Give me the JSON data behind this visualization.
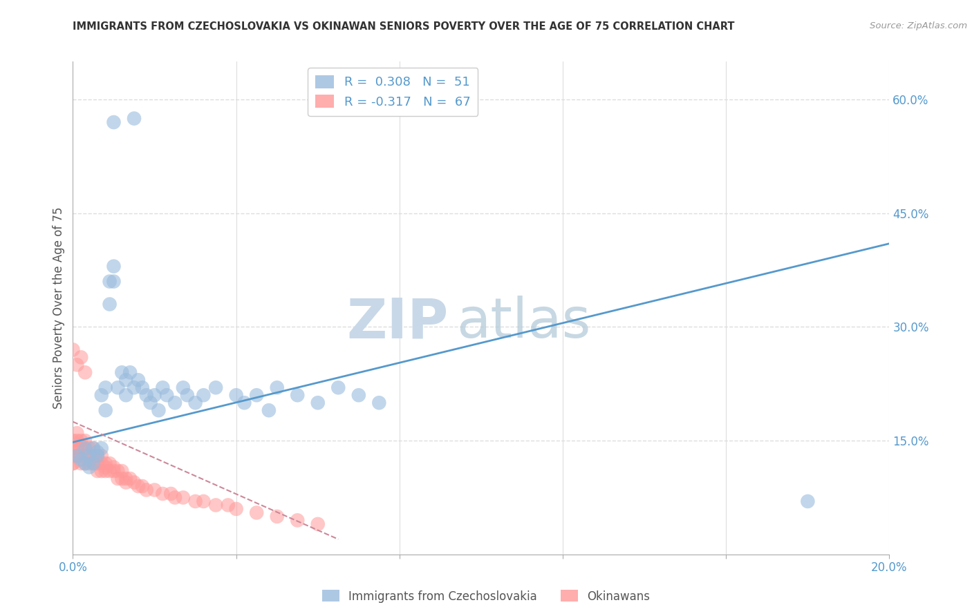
{
  "title": "IMMIGRANTS FROM CZECHOSLOVAKIA VS OKINAWAN SENIORS POVERTY OVER THE AGE OF 75 CORRELATION CHART",
  "source": "Source: ZipAtlas.com",
  "ylabel": "Seniors Poverty Over the Age of 75",
  "xlim": [
    0.0,
    0.2
  ],
  "ylim": [
    0.0,
    0.65
  ],
  "blue_color": "#99BBDD",
  "pink_color": "#FF9999",
  "line_blue_color": "#5599CC",
  "line_pink_color": "#CC8899",
  "blue_scatter_x": [
    0.001,
    0.002,
    0.003,
    0.003,
    0.004,
    0.004,
    0.005,
    0.005,
    0.006,
    0.006,
    0.007,
    0.007,
    0.008,
    0.008,
    0.009,
    0.009,
    0.01,
    0.01,
    0.011,
    0.012,
    0.013,
    0.013,
    0.014,
    0.015,
    0.016,
    0.017,
    0.018,
    0.019,
    0.02,
    0.021,
    0.022,
    0.023,
    0.025,
    0.027,
    0.028,
    0.03,
    0.032,
    0.035,
    0.04,
    0.042,
    0.045,
    0.048,
    0.05,
    0.055,
    0.06,
    0.065,
    0.07,
    0.075,
    0.01,
    0.015,
    0.18
  ],
  "blue_scatter_y": [
    0.13,
    0.125,
    0.14,
    0.12,
    0.13,
    0.115,
    0.14,
    0.12,
    0.135,
    0.13,
    0.14,
    0.21,
    0.22,
    0.19,
    0.36,
    0.33,
    0.38,
    0.36,
    0.22,
    0.24,
    0.21,
    0.23,
    0.24,
    0.22,
    0.23,
    0.22,
    0.21,
    0.2,
    0.21,
    0.19,
    0.22,
    0.21,
    0.2,
    0.22,
    0.21,
    0.2,
    0.21,
    0.22,
    0.21,
    0.2,
    0.21,
    0.19,
    0.22,
    0.21,
    0.2,
    0.22,
    0.21,
    0.2,
    0.57,
    0.575,
    0.07
  ],
  "pink_scatter_x": [
    0.0,
    0.0,
    0.0,
    0.0,
    0.0,
    0.0,
    0.001,
    0.001,
    0.001,
    0.001,
    0.001,
    0.002,
    0.002,
    0.002,
    0.002,
    0.003,
    0.003,
    0.003,
    0.003,
    0.004,
    0.004,
    0.004,
    0.005,
    0.005,
    0.005,
    0.006,
    0.006,
    0.006,
    0.007,
    0.007,
    0.007,
    0.008,
    0.008,
    0.008,
    0.009,
    0.009,
    0.01,
    0.01,
    0.011,
    0.011,
    0.012,
    0.012,
    0.013,
    0.013,
    0.014,
    0.015,
    0.016,
    0.017,
    0.018,
    0.02,
    0.022,
    0.024,
    0.025,
    0.027,
    0.03,
    0.032,
    0.035,
    0.038,
    0.04,
    0.045,
    0.05,
    0.055,
    0.06,
    0.001,
    0.002,
    0.003,
    0.0
  ],
  "pink_scatter_y": [
    0.15,
    0.14,
    0.13,
    0.13,
    0.12,
    0.12,
    0.16,
    0.15,
    0.14,
    0.14,
    0.13,
    0.15,
    0.14,
    0.13,
    0.12,
    0.15,
    0.14,
    0.13,
    0.12,
    0.14,
    0.13,
    0.12,
    0.14,
    0.13,
    0.12,
    0.13,
    0.12,
    0.11,
    0.13,
    0.12,
    0.11,
    0.12,
    0.115,
    0.11,
    0.12,
    0.11,
    0.115,
    0.11,
    0.11,
    0.1,
    0.11,
    0.1,
    0.1,
    0.095,
    0.1,
    0.095,
    0.09,
    0.09,
    0.085,
    0.085,
    0.08,
    0.08,
    0.075,
    0.075,
    0.07,
    0.07,
    0.065,
    0.065,
    0.06,
    0.055,
    0.05,
    0.045,
    0.04,
    0.25,
    0.26,
    0.24,
    0.27
  ],
  "blue_trend_x": [
    0.0,
    0.2
  ],
  "blue_trend_y": [
    0.148,
    0.41
  ],
  "pink_trend_x": [
    0.0,
    0.065
  ],
  "pink_trend_y": [
    0.175,
    0.02
  ],
  "watermark_zip_color": "#C8D8E8",
  "watermark_atlas_color": "#B0C8D8",
  "background_color": "#FFFFFF",
  "grid_color": "#DDDDDD",
  "axis_label_color": "#5599CC",
  "title_color": "#333333",
  "source_color": "#999999"
}
